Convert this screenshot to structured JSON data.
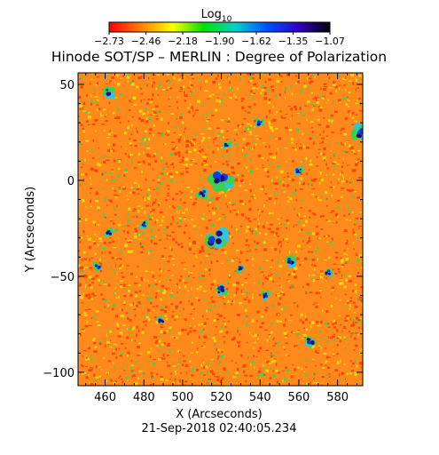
{
  "chart_data": {
    "type": "heatmap",
    "title": "Hinode SOT/SP – MERLIN : Degree of Polarization",
    "xlabel": "X (Arcseconds)",
    "ylabel": "Y (Arcseconds)",
    "footer": "21-Sep-2018 02:40:05.234",
    "colorbar": {
      "label_base": "Log",
      "label_sub": "10",
      "ticks": [
        "−2.73",
        "−2.46",
        "−2.18",
        "−1.90",
        "−1.62",
        "−1.35",
        "−1.07"
      ],
      "range": [
        -2.73,
        -1.07
      ],
      "colormap": [
        "#ff0000",
        "#ff7f00",
        "#ffff00",
        "#00e000",
        "#00d0d0",
        "#0050ff",
        "#3000c0",
        "#000000"
      ]
    },
    "xlim": [
      446,
      593
    ],
    "ylim": [
      -107,
      56
    ],
    "x_ticks": [
      460,
      480,
      500,
      520,
      540,
      560,
      580
    ],
    "x_tick_labels": [
      "460",
      "480",
      "500",
      "520",
      "540",
      "560",
      "580"
    ],
    "y_ticks": [
      50,
      0,
      -50,
      -100
    ],
    "y_tick_labels": [
      "50",
      "0",
      "−50",
      "−100"
    ],
    "map_colors": {
      "background": "#ff8a1c",
      "red": "#ff3800",
      "yellow": "#f2e010",
      "green": "#3cd050",
      "cyan": "#30c8d8",
      "blue": "#1838e0",
      "navy": "#1a1070"
    },
    "strong_features": [
      {
        "x": 520,
        "y": 0,
        "r": 4
      },
      {
        "x": 517,
        "y": -30,
        "r": 4
      },
      {
        "x": 462,
        "y": 46,
        "r": 2
      },
      {
        "x": 591,
        "y": 25,
        "r": 3
      },
      {
        "x": 510,
        "y": -7,
        "r": 2
      },
      {
        "x": 489,
        "y": -73,
        "r": 1.5
      },
      {
        "x": 530,
        "y": -46,
        "r": 1.5
      },
      {
        "x": 520,
        "y": -57,
        "r": 2
      },
      {
        "x": 556,
        "y": -42,
        "r": 2
      },
      {
        "x": 566,
        "y": -84,
        "r": 2
      },
      {
        "x": 480,
        "y": -23,
        "r": 1.5
      },
      {
        "x": 462,
        "y": -27,
        "r": 1.5
      },
      {
        "x": 456,
        "y": -45,
        "r": 1.5
      },
      {
        "x": 543,
        "y": -60,
        "r": 1.5
      },
      {
        "x": 560,
        "y": 5,
        "r": 1.5
      },
      {
        "x": 540,
        "y": 30,
        "r": 1.5
      },
      {
        "x": 523,
        "y": 18,
        "r": 1.5
      },
      {
        "x": 575,
        "y": -48,
        "r": 1.5
      }
    ]
  }
}
